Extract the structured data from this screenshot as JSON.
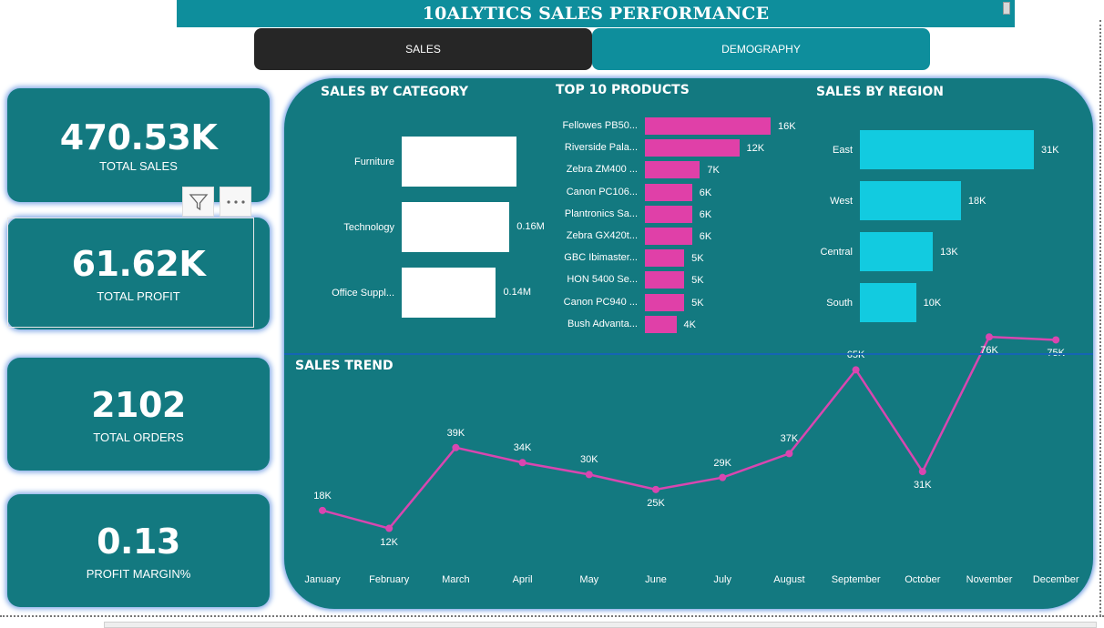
{
  "header": {
    "title": "10ALYTICS SALES PERFORMANCE"
  },
  "tabs": {
    "sales": "SALES",
    "demography": "DEMOGRAPHY"
  },
  "kpis": {
    "total_sales": {
      "value": "470.53K",
      "label": "TOTAL SALES"
    },
    "total_profit": {
      "value": "61.62K",
      "label": "TOTAL PROFIT"
    },
    "total_orders": {
      "value": "2102",
      "label": "TOTAL ORDERS"
    },
    "profit_margin": {
      "value": "0.13",
      "label": "PROFIT MARGIN%"
    }
  },
  "toolbar": {
    "filter_icon": "filter-icon",
    "more_icon": "more-options-icon"
  },
  "colors": {
    "teal": "#137980",
    "header_teal": "#0e8e9c",
    "magenta": "#e040a8",
    "cyan": "#12cbe0",
    "dark": "#262626"
  },
  "chart_data": [
    {
      "type": "bar",
      "orientation": "horizontal",
      "title": "SALES BY CATEGORY",
      "categories": [
        "Furniture",
        "Technology",
        "Office Suppl..."
      ],
      "values": [
        0.17,
        0.16,
        0.14
      ],
      "value_labels": [
        "",
        "0.16M",
        "0.14M"
      ],
      "unit": "M"
    },
    {
      "type": "bar",
      "orientation": "horizontal",
      "title": "TOP 10 PRODUCTS",
      "categories": [
        "Fellowes PB50...",
        "Riverside Pala...",
        "Zebra ZM400 ...",
        "Canon PC106...",
        "Plantronics Sa...",
        "Zebra GX420t...",
        "GBC Ibimaster...",
        "HON 5400 Se...",
        "Canon PC940 ...",
        "Bush Advanta..."
      ],
      "values": [
        16,
        12,
        7,
        6,
        6,
        6,
        5,
        5,
        5,
        4
      ],
      "value_labels": [
        "16K",
        "12K",
        "7K",
        "6K",
        "6K",
        "6K",
        "5K",
        "5K",
        "5K",
        "4K"
      ],
      "unit": "K"
    },
    {
      "type": "bar",
      "orientation": "horizontal",
      "title": "SALES BY REGION",
      "categories": [
        "East",
        "West",
        "Central",
        "South"
      ],
      "values": [
        31,
        18,
        13,
        10
      ],
      "value_labels": [
        "31K",
        "18K",
        "13K",
        "10K"
      ],
      "unit": "K"
    },
    {
      "type": "line",
      "title": "SALES TREND",
      "x": [
        "January",
        "February",
        "March",
        "April",
        "May",
        "June",
        "July",
        "August",
        "September",
        "October",
        "November",
        "December"
      ],
      "values": [
        18,
        12,
        39,
        34,
        30,
        25,
        29,
        37,
        65,
        31,
        76,
        75
      ],
      "value_labels": [
        "18K",
        "12K",
        "39K",
        "34K",
        "30K",
        "25K",
        "29K",
        "37K",
        "65K",
        "31K",
        "76K",
        "75K"
      ],
      "unit": "K",
      "grid": false
    }
  ]
}
